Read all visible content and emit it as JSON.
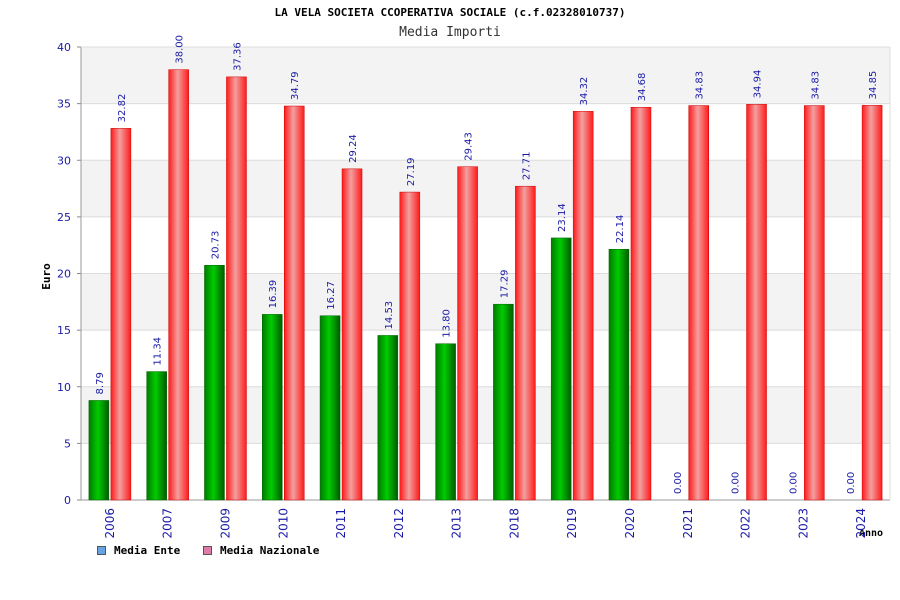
{
  "chart_data": {
    "type": "bar",
    "title": "LA VELA SOCIETA CCOPERATIVA SOCIALE (c.f.02328010737)",
    "subtitle": "Media Importi",
    "xlabel": "Anno",
    "ylabel": "Euro",
    "ylim": [
      0,
      40
    ],
    "yticks": [
      "0",
      "5",
      "10",
      "15",
      "20",
      "25",
      "30",
      "35",
      "40"
    ],
    "grid": true,
    "categories": [
      "2006",
      "2007",
      "2009",
      "2010",
      "2011",
      "2012",
      "2013",
      "2018",
      "2019",
      "2020",
      "2021",
      "2022",
      "2023",
      "2024"
    ],
    "series": [
      {
        "name": "Media Ente",
        "color": "#00c000",
        "legend_color": "#66a3e0",
        "values": [
          8.79,
          11.34,
          20.73,
          16.39,
          16.27,
          14.53,
          13.8,
          17.29,
          23.14,
          22.14,
          0.0,
          0.0,
          0.0,
          0.0
        ],
        "labels": [
          "8.79",
          "11.34",
          "20.73",
          "16.39",
          "16.27",
          "14.53",
          "13.80",
          "17.29",
          "23.14",
          "22.14",
          "0.00",
          "0.00",
          "0.00",
          "0.00"
        ]
      },
      {
        "name": "Media Nazionale",
        "color": "#ff1f1f",
        "legend_color": "#e07aa8",
        "values": [
          32.82,
          38.0,
          37.36,
          34.79,
          29.24,
          27.19,
          29.43,
          27.71,
          34.32,
          34.68,
          34.83,
          34.94,
          34.83,
          34.85
        ],
        "labels": [
          "32.82",
          "38.00",
          "37.36",
          "34.79",
          "29.24",
          "27.19",
          "29.43",
          "27.71",
          "34.32",
          "34.68",
          "34.83",
          "34.94",
          "34.83",
          "34.85"
        ]
      }
    ],
    "legend_position": "bottom-left"
  }
}
